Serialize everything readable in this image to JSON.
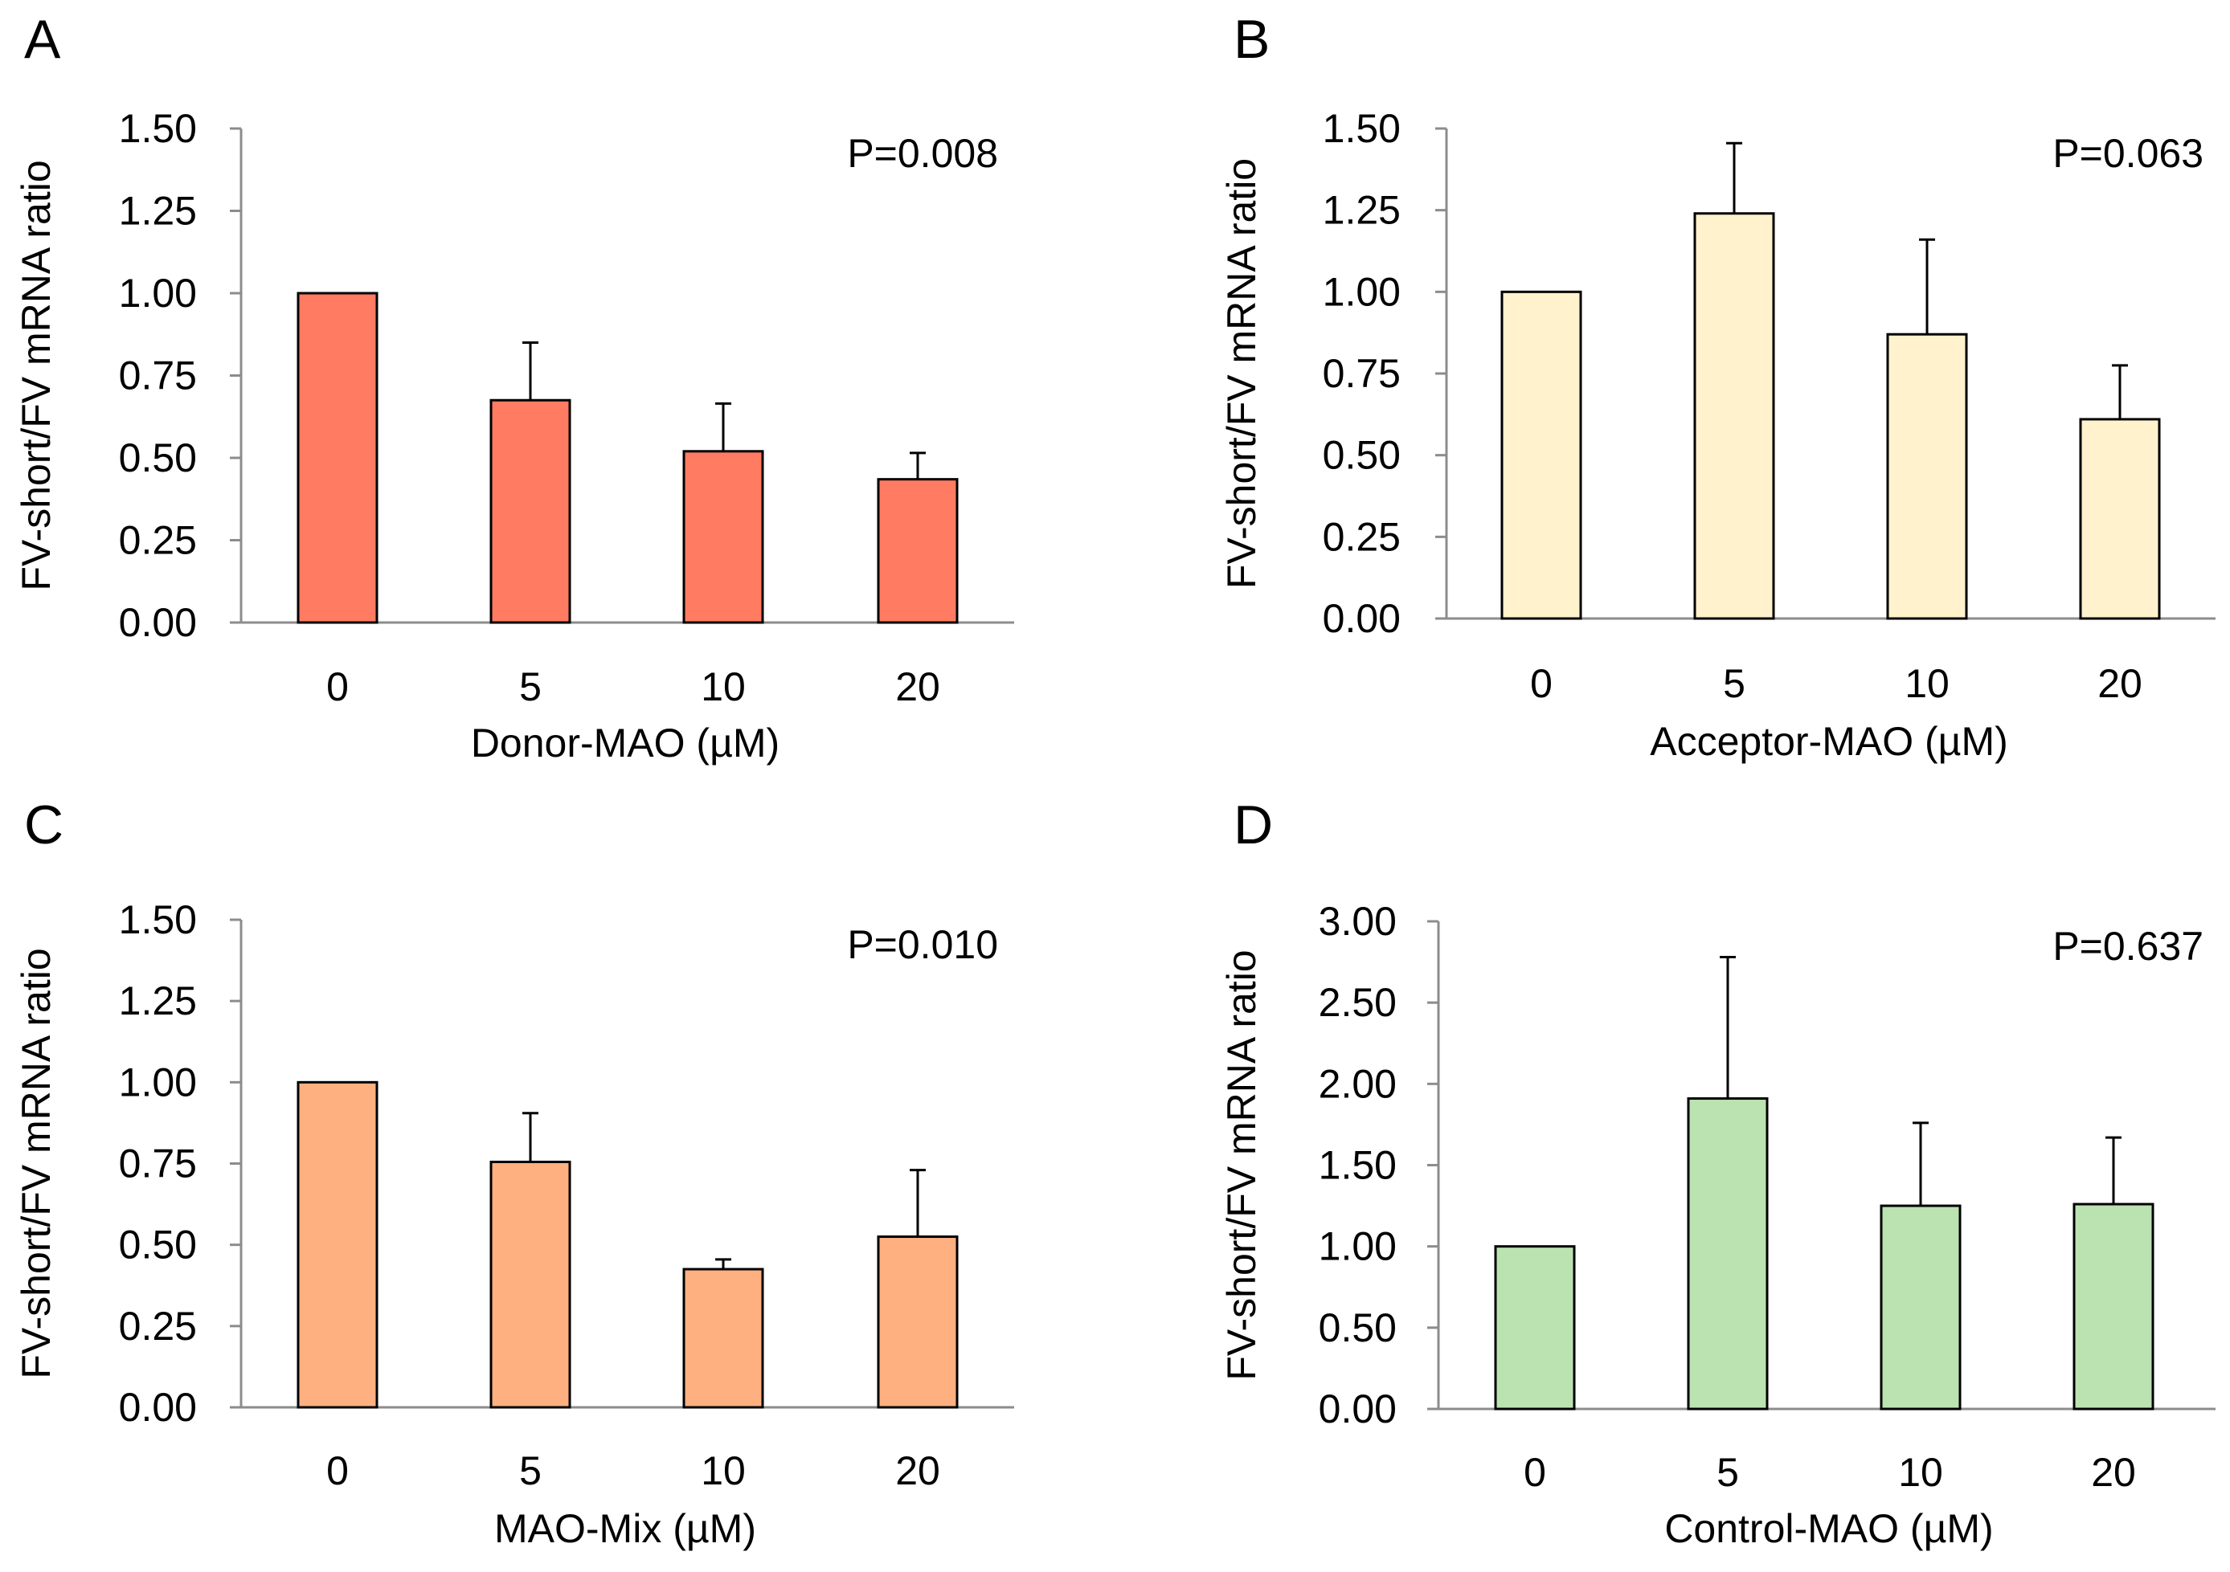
{
  "chart_data": [
    {
      "type": "bar",
      "panel": "A",
      "categories": [
        "0",
        "5",
        "10",
        "20"
      ],
      "values": [
        1.0,
        0.675,
        0.52,
        0.435
      ],
      "errors": [
        0,
        0.175,
        0.145,
        0.08
      ],
      "color": "#ff7b61",
      "xlabel": "Donor-MAO (µM)",
      "ylabel": "FV-short/FV mRNA ratio",
      "ylim": [
        0,
        1.5
      ],
      "yticks": [
        "0.00",
        "0.25",
        "0.50",
        "0.75",
        "1.00",
        "1.25",
        "1.50"
      ],
      "annotation": "P=0.008"
    },
    {
      "type": "bar",
      "panel": "B",
      "categories": [
        "0",
        "5",
        "10",
        "20"
      ],
      "values": [
        1.0,
        1.24,
        0.87,
        0.61
      ],
      "errors": [
        0,
        0.215,
        0.29,
        0.165
      ],
      "color": "#fff2cc",
      "xlabel": "Acceptor-MAO (µM)",
      "ylabel": "FV-short/FV mRNA ratio",
      "ylim": [
        0,
        1.5
      ],
      "yticks": [
        "0.00",
        "0.25",
        "0.50",
        "0.75",
        "1.00",
        "1.25",
        "1.50"
      ],
      "annotation": "P=0.063"
    },
    {
      "type": "bar",
      "panel": "C",
      "categories": [
        "0",
        "5",
        "10",
        "20"
      ],
      "values": [
        1.0,
        0.755,
        0.425,
        0.525
      ],
      "errors": [
        0,
        0.15,
        0.03,
        0.205
      ],
      "color": "#ffb081",
      "xlabel": "MAO-Mix (µM)",
      "ylabel": "FV-short/FV mRNA ratio",
      "ylim": [
        0,
        1.5
      ],
      "yticks": [
        "0.00",
        "0.25",
        "0.50",
        "0.75",
        "1.00",
        "1.25",
        "1.50"
      ],
      "annotation": "P=0.010"
    },
    {
      "type": "bar",
      "panel": "D",
      "categories": [
        "0",
        "5",
        "10",
        "20"
      ],
      "values": [
        1.0,
        1.91,
        1.25,
        1.26
      ],
      "errors": [
        0,
        0.87,
        0.51,
        0.41
      ],
      "color": "#bbe2b1",
      "xlabel": "Control-MAO (µM)",
      "ylabel": "FV-short/FV mRNA ratio",
      "ylim": [
        0,
        3.0
      ],
      "yticks": [
        "0.00",
        "0.50",
        "1.00",
        "1.50",
        "2.00",
        "2.50",
        "3.00"
      ],
      "annotation": "P=0.637"
    }
  ]
}
